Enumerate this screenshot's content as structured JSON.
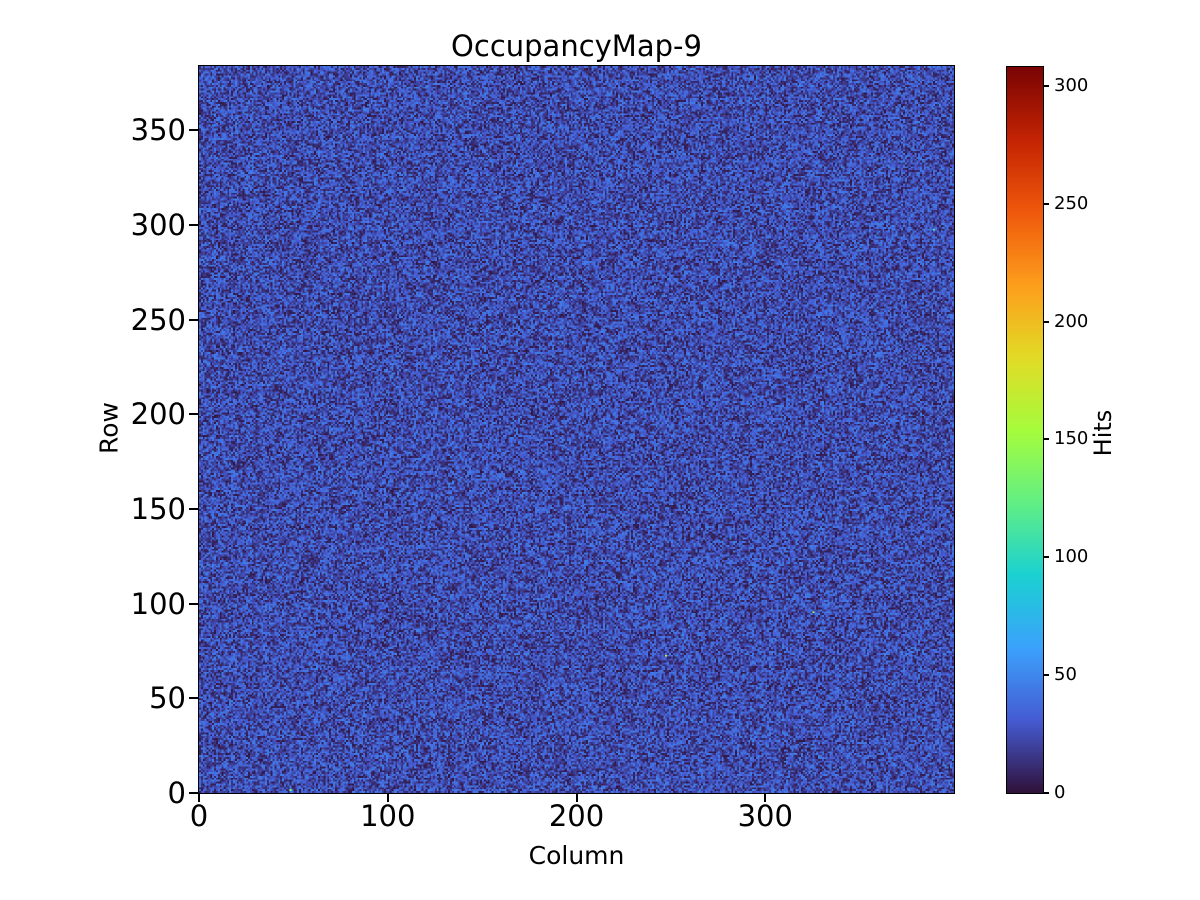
{
  "title": "OccupancyMap-9",
  "x_axis": {
    "label": "Column",
    "ticks": [
      0,
      100,
      200,
      300
    ],
    "range": [
      0,
      400
    ]
  },
  "y_axis": {
    "label": "Row",
    "ticks": [
      0,
      50,
      100,
      150,
      200,
      250,
      300,
      350
    ],
    "range": [
      0,
      384
    ]
  },
  "colorbar": {
    "label": "Hits",
    "ticks": [
      0,
      50,
      100,
      150,
      200,
      250,
      300
    ],
    "vmin": 0,
    "vmax": 308,
    "colormap_name": "turbo"
  },
  "chart_data": {
    "type": "heatmap",
    "title": "OccupancyMap-9",
    "xlabel": "Column",
    "ylabel": "Row",
    "value_label": "Hits",
    "cols": 400,
    "rows": 384,
    "value_range": [
      0,
      308
    ],
    "noise": {
      "kind": "uniform",
      "min": 2,
      "max": 46,
      "hot_pixels": 5,
      "hot_min": 80,
      "hot_max": 308,
      "seed": 9
    },
    "colormap_stops": [
      [
        0.0,
        "#30123b"
      ],
      [
        0.1,
        "#455cd3"
      ],
      [
        0.2,
        "#3ba2fc"
      ],
      [
        0.3,
        "#1bd1d2"
      ],
      [
        0.4,
        "#62ef84"
      ],
      [
        0.5,
        "#a6fc3c"
      ],
      [
        0.6,
        "#e2db25"
      ],
      [
        0.7,
        "#fd9e1c"
      ],
      [
        0.8,
        "#ef590c"
      ],
      [
        0.9,
        "#c42403"
      ],
      [
        1.0,
        "#7a0403"
      ]
    ],
    "background_color": "#ffffff",
    "text_color": "#000000"
  }
}
